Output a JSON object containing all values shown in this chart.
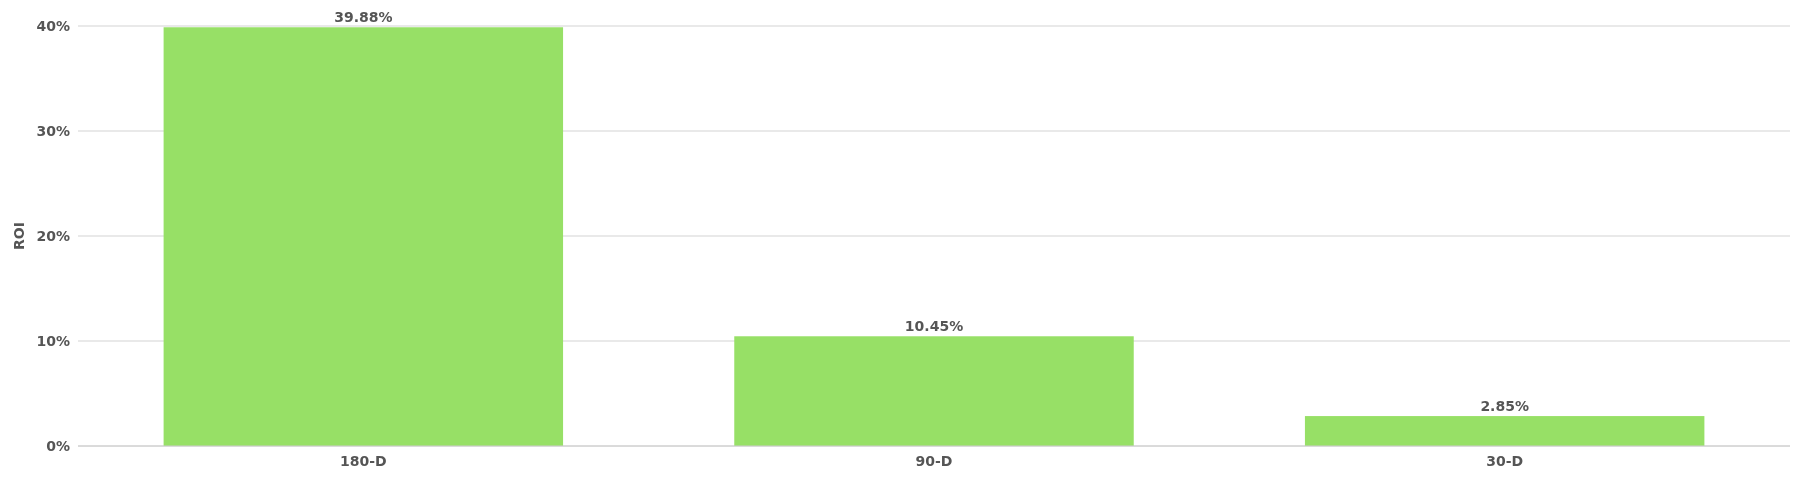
{
  "chart_data": {
    "type": "bar",
    "ylabel": "ROI",
    "categories": [
      "180-D",
      "90-D",
      "30-D"
    ],
    "values": [
      39.88,
      10.45,
      2.85
    ],
    "value_labels": [
      "39.88%",
      "10.45%",
      "2.85%"
    ],
    "color": "#97e066",
    "ylim": [
      0,
      40
    ],
    "yticks": [
      {
        "value": 0,
        "label": "0%"
      },
      {
        "value": 10,
        "label": "10%"
      },
      {
        "value": 20,
        "label": "20%"
      },
      {
        "value": 30,
        "label": "30%"
      },
      {
        "value": 40,
        "label": "40%"
      }
    ],
    "grid": "y"
  }
}
